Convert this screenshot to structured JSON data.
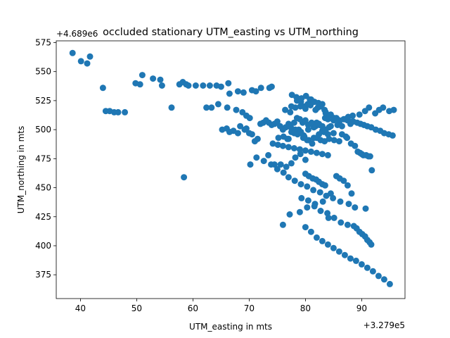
{
  "chart_data": {
    "type": "scatter",
    "title": "occluded stationary UTM_easting vs UTM_northing",
    "xlabel": "UTM_easting in mts",
    "ylabel": "UTM_northing in mts",
    "x_offset_label": "+3.279e5",
    "y_offset_label": "+4.689e6",
    "xlim": [
      35.7,
      97.7
    ],
    "ylim": [
      354.5,
      576.5
    ],
    "xticks": [
      40,
      50,
      60,
      70,
      80,
      90
    ],
    "yticks": [
      375,
      400,
      425,
      450,
      475,
      500,
      525,
      550,
      575
    ],
    "grid": false,
    "marker_color": "#1f77b4",
    "series": [
      {
        "x": [
          38.6,
          40.1,
          41.2,
          41.7,
          44.0,
          44.5,
          45.2,
          46.0,
          46.7,
          47.9,
          49.8,
          50.6,
          51.0,
          52.9,
          54.2,
          54.5,
          56.2,
          57.6,
          58.2,
          58.8,
          58.4,
          59.2,
          60.5,
          61.8,
          63.0,
          64.2,
          65.0,
          66.3,
          66.5,
          68.0,
          69.0,
          70.5,
          71.2,
          72.1,
          73.6,
          74.0,
          62.4,
          63.3,
          64.5,
          66.1,
          67.7,
          68.8,
          69.5,
          70.1,
          65.2,
          66.0,
          66.5,
          67.2,
          68.0,
          68.4,
          69.2,
          69.5,
          70.0,
          70.5,
          71.0,
          71.5,
          72.0,
          72.5,
          73.0,
          73.5,
          74.0,
          74.5,
          75.0,
          75.5,
          76.0,
          76.5,
          77.0,
          77.5,
          78.0,
          78.5,
          79.0,
          79.5,
          80.0,
          80.5,
          81.0,
          81.5,
          82.0,
          82.5,
          83.0,
          83.5,
          84.0,
          84.5,
          85.0,
          85.5,
          86.0,
          86.5,
          87.0,
          87.5,
          88.0,
          88.5,
          75.2,
          76.1,
          77.0,
          77.9,
          78.8,
          79.7,
          80.6,
          81.5,
          82.4,
          83.3,
          84.2,
          85.1,
          86.0,
          76.4,
          77.3,
          78.2,
          79.1,
          80.0,
          80.9,
          81.8,
          82.7,
          83.6,
          84.5,
          78.5,
          79.2,
          79.9,
          80.4,
          81.0,
          81.6,
          82.2,
          82.8,
          83.4,
          77.6,
          78.4,
          79.3,
          80.1,
          80.8,
          81.5,
          82.3,
          83.0,
          83.6,
          84.3,
          85.1,
          86.0,
          86.8,
          87.6,
          88.3,
          89.2,
          89.8,
          90.4,
          91.0,
          91.7,
          92.5,
          93.3,
          94.0,
          94.8,
          95.5,
          87.2,
          88.4,
          89.6,
          90.6,
          91.3,
          92.4,
          93.1,
          93.8,
          94.9,
          95.7,
          77.5,
          78.2,
          78.9,
          79.6,
          80.3,
          81.2,
          82.0,
          82.7,
          83.4,
          84.0,
          76.8,
          77.4,
          78.0,
          78.6,
          79.2,
          79.8,
          80.5,
          81.1,
          81.8,
          82.4,
          83.0,
          83.6,
          84.2,
          85.0,
          85.7,
          86.5,
          87.4,
          88.1,
          88.8,
          89.3,
          89.7,
          90.0,
          90.3,
          90.8,
          91.2,
          91.5,
          73.4,
          74.5,
          75.6,
          76.6,
          77.5,
          78.2,
          79.1,
          80.0,
          70.2,
          71.3,
          72.6,
          73.9,
          75.0,
          76.1,
          77.0,
          78.1,
          79.2,
          80.3,
          81.4,
          82.6,
          83.7,
          84.9,
          86.2,
          87.7,
          88.8,
          90.7,
          91.8,
          80.0,
          80.6,
          81.3,
          81.9,
          82.4,
          83.0,
          83.5,
          84.1,
          76.0,
          77.2,
          79.0,
          80.3,
          81.7,
          83.1,
          84.5,
          79.3,
          80.5,
          81.6,
          82.7,
          83.9,
          85.1,
          86.3,
          87.5,
          88.6,
          89.1,
          89.6,
          90.1,
          90.6,
          91.0,
          91.4,
          91.7,
          80.0,
          81.0,
          82.0,
          83.0,
          84.0,
          85.0,
          86.0,
          87.0,
          88.0,
          89.0,
          90.0,
          91.0,
          92.0,
          93.0,
          94.0,
          95.0,
          85.5,
          86.1,
          86.8,
          87.5,
          88.2,
          74.2,
          75.1,
          76.0,
          77.0,
          78.0,
          79.0,
          80.0,
          81.0,
          82.0,
          83.0,
          84.0
        ],
        "y": [
          566,
          559,
          557,
          563,
          536,
          516,
          516,
          515,
          515,
          515,
          540,
          539,
          547,
          544,
          543,
          538,
          519,
          539,
          541,
          539,
          459,
          538,
          538,
          538,
          538,
          538,
          537,
          540,
          531,
          533,
          532,
          534,
          533,
          536,
          536,
          537,
          519,
          519,
          522,
          519,
          517,
          515,
          512,
          510,
          500,
          501,
          498,
          499,
          497,
          503,
          500,
          501,
          497,
          496,
          490,
          492,
          505,
          506,
          508,
          506,
          504,
          505,
          507,
          503,
          500,
          502,
          505,
          498,
          506,
          510,
          509,
          506,
          508,
          504,
          505,
          502,
          506,
          504,
          503,
          510,
          509,
          503,
          508,
          510,
          506,
          503,
          509,
          508,
          505,
          507,
          493,
          494,
          492,
          498,
          500,
          495,
          491,
          493,
          496,
          498,
          492,
          491,
          490,
          517,
          515,
          519,
          520,
          518,
          521,
          517,
          520,
          514,
          513,
          525,
          524,
          520,
          522,
          526,
          524,
          519,
          521,
          517,
          530,
          528,
          527,
          529,
          526,
          524,
          523,
          522,
          515,
          512,
          510,
          508,
          509,
          511,
          507,
          506,
          505,
          504,
          503,
          502,
          500,
          499,
          497,
          496,
          495,
          494,
          512,
          513,
          516,
          519,
          514,
          517,
          519,
          516,
          517,
          520,
          500,
          497,
          493,
          491,
          488,
          493,
          491,
          490,
          496,
          492,
          502,
          497,
          496,
          498,
          494,
          500,
          506,
          503,
          505,
          499,
          500,
          502,
          497,
          504,
          496,
          493,
          488,
          486,
          481,
          480,
          479,
          478,
          478,
          477,
          477,
          478,
          470,
          470,
          468,
          471,
          476,
          479,
          474,
          470,
          476,
          473,
          470,
          466,
          463,
          459,
          456,
          453,
          451,
          448,
          446,
          443,
          441,
          438,
          436,
          433,
          432,
          465,
          462,
          460,
          458,
          457,
          455,
          453,
          452,
          424,
          418,
          427,
          429,
          433,
          436,
          438,
          445,
          441,
          439,
          434,
          430,
          428,
          424,
          420,
          418,
          417,
          415,
          412,
          410,
          408,
          405,
          403,
          401,
          416,
          412,
          407,
          404,
          401,
          398,
          395,
          392,
          389,
          387,
          384,
          381,
          378,
          374,
          371,
          367,
          460,
          458,
          456,
          452,
          445,
          488,
          487,
          486,
          485,
          484,
          483,
          482,
          481,
          480,
          479,
          478
        ]
      }
    ]
  }
}
